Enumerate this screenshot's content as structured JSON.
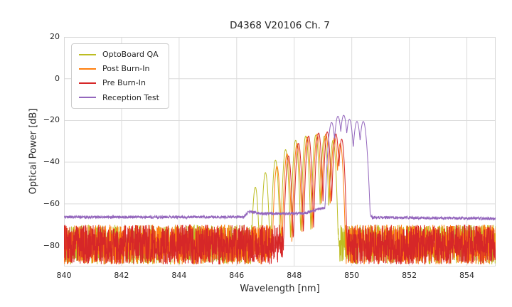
{
  "chart_data": {
    "type": "line",
    "title": "D4368 V20106 Ch. 7",
    "xlabel": "Wavelength [nm]",
    "ylabel": "Optical Power [dB]",
    "xlim": [
      840,
      855
    ],
    "ylim": [
      -90,
      20
    ],
    "xticks": [
      840,
      842,
      844,
      846,
      848,
      850,
      852,
      854
    ],
    "yticks": [
      20,
      0,
      -20,
      -40,
      -60,
      -80
    ],
    "grid": true,
    "legend_position": "upper-left",
    "series": [
      {
        "name": "OptoBoard QA",
        "color": "#bcbd22",
        "noise_band": [
          -89,
          -70
        ],
        "mode_width_nm": 0.13,
        "mode_falloff_db": 25,
        "modes": [
          [
            846.65,
            -52
          ],
          [
            847.0,
            -45
          ],
          [
            847.35,
            -39
          ],
          [
            847.7,
            -34
          ],
          [
            848.05,
            -29.5
          ],
          [
            848.4,
            -27.5
          ],
          [
            848.75,
            -27
          ],
          [
            849.05,
            -27.5
          ],
          [
            849.35,
            -29.5
          ]
        ]
      },
      {
        "name": "Post Burn-In",
        "color": "#ff7f0e",
        "noise_band": [
          -89,
          -70
        ],
        "mode_width_nm": 0.13,
        "mode_falloff_db": 25,
        "modes": [
          [
            847.4,
            -42
          ],
          [
            847.75,
            -36
          ],
          [
            848.1,
            -31
          ],
          [
            848.45,
            -28
          ],
          [
            848.8,
            -26.5
          ],
          [
            849.1,
            -26.5
          ],
          [
            849.4,
            -28
          ],
          [
            849.6,
            -31
          ]
        ]
      },
      {
        "name": "Pre Burn-In",
        "color": "#d62728",
        "noise_band": [
          -89,
          -70
        ],
        "mode_width_nm": 0.13,
        "mode_falloff_db": 25,
        "modes": [
          [
            847.8,
            -37
          ],
          [
            848.15,
            -31
          ],
          [
            848.5,
            -27.5
          ],
          [
            848.85,
            -26
          ],
          [
            849.15,
            -25.5
          ],
          [
            849.45,
            -26.5
          ],
          [
            849.65,
            -29
          ]
        ]
      },
      {
        "name": "Reception Test",
        "color": "#9467bd",
        "baseline": [
          [
            840,
            -66.3
          ],
          [
            846.25,
            -66.3
          ],
          [
            846.42,
            -63.6
          ],
          [
            846.8,
            -64.6
          ],
          [
            848.3,
            -64.6
          ],
          [
            849.0,
            -62.0
          ],
          [
            849.2,
            -60.5
          ],
          [
            850.55,
            -64.0
          ],
          [
            850.72,
            -66.5
          ],
          [
            855,
            -67.0
          ]
        ],
        "noise_jitter": 0.7,
        "mode_width_nm": 0.18,
        "mode_falloff_db": 25,
        "modes": [
          [
            849.3,
            -21
          ],
          [
            849.52,
            -18
          ],
          [
            849.72,
            -17.5
          ],
          [
            849.92,
            -19.5
          ],
          [
            850.18,
            -20.5
          ],
          [
            850.4,
            -20.5
          ]
        ]
      }
    ]
  }
}
